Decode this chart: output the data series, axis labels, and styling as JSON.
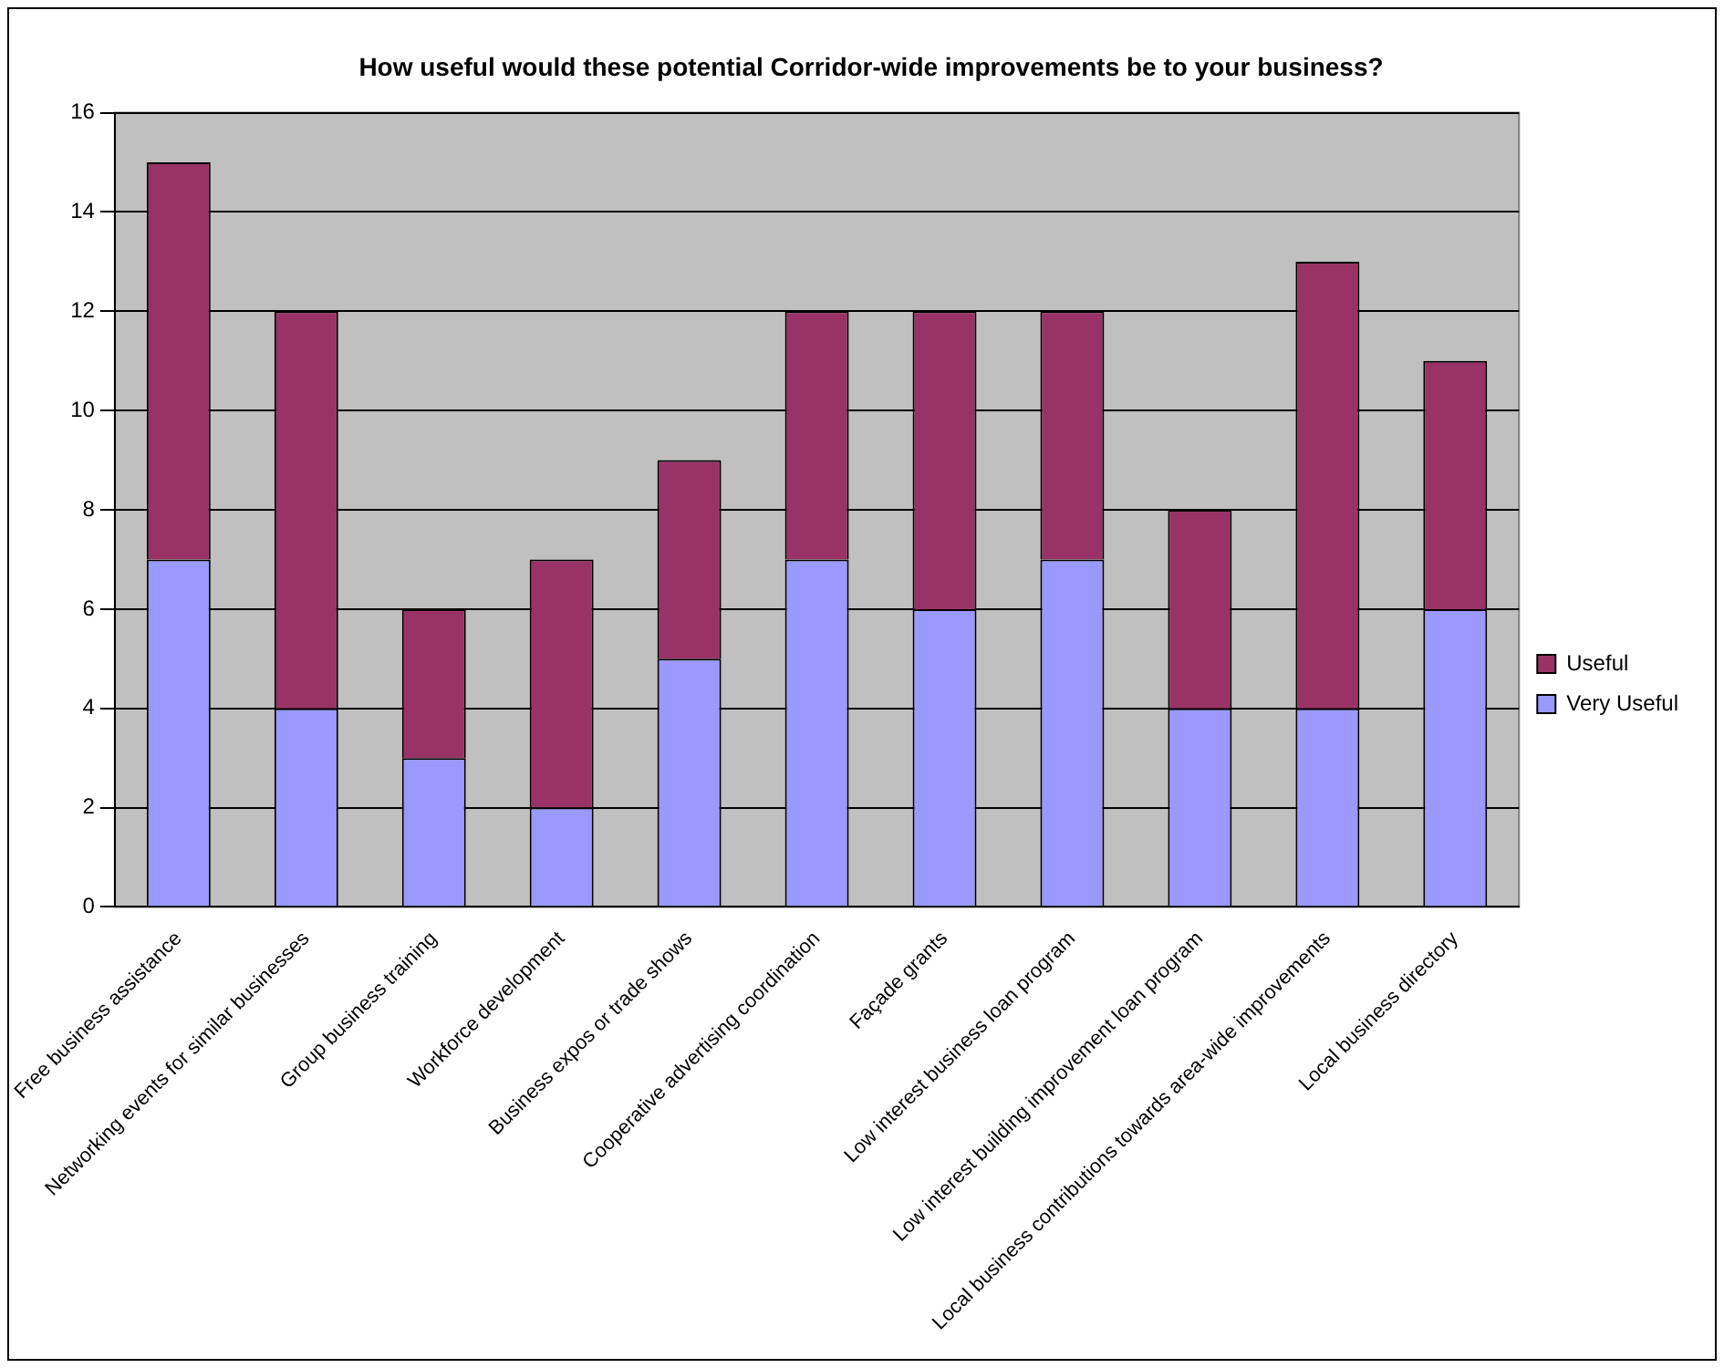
{
  "chart_data": {
    "type": "bar",
    "title": "How useful would these potential Corridor-wide improvements be to your business?",
    "categories": [
      "Free business assistance",
      "Networking events for similar businesses",
      "Group business training",
      "Workforce development",
      "Business expos or trade shows",
      "Cooperative advertising coordination",
      "Façade grants",
      "Low interest business loan program",
      "Low interest building improvement loan program",
      "Local business contributions towards area-wide improvements",
      "Local business directory"
    ],
    "series": [
      {
        "name": "Very Useful",
        "color": "#9999ff",
        "values": [
          7,
          4,
          3,
          2,
          5,
          7,
          6,
          7,
          4,
          4,
          6
        ]
      },
      {
        "name": "Useful",
        "color": "#993366",
        "values": [
          8,
          8,
          3,
          5,
          4,
          5,
          6,
          5,
          4,
          9,
          5
        ]
      }
    ],
    "stacked": true,
    "ylim": [
      0,
      16
    ],
    "yticks": [
      0,
      2,
      4,
      6,
      8,
      10,
      12,
      14,
      16
    ],
    "grid": "y",
    "legend": "right"
  }
}
